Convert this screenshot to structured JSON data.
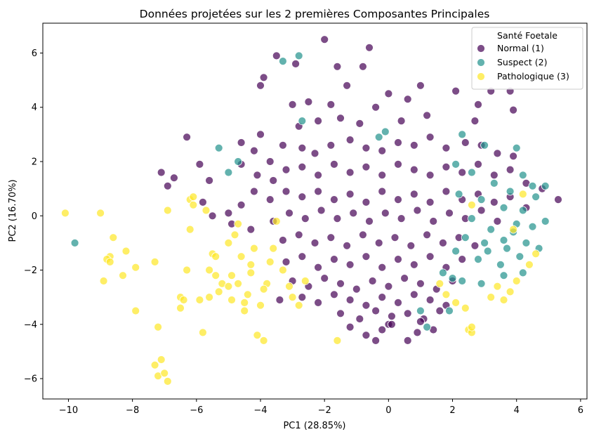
{
  "chart_data": {
    "type": "scatter",
    "title": "Données projetées sur les 2 premières Composantes Principales",
    "xlabel": "PC1 (28.85%)",
    "ylabel": "PC2 (16.70%)",
    "xlim": [
      -10.8,
      6.2
    ],
    "ylim": [
      -6.75,
      7.1
    ],
    "xticks": [
      -10,
      -8,
      -6,
      -4,
      -2,
      0,
      2,
      4,
      6
    ],
    "yticks": [
      -6,
      -4,
      -2,
      0,
      2,
      4,
      6
    ],
    "grid": false,
    "legend": {
      "title": "Santé Foetale",
      "placement": "top-right"
    },
    "series": [
      {
        "name": "Normal (1)",
        "color": "#440154",
        "points": [
          [
            -2.0,
            6.5
          ],
          [
            -3.5,
            5.9
          ],
          [
            -0.6,
            6.2
          ],
          [
            -1.6,
            5.5
          ],
          [
            -0.8,
            5.5
          ],
          [
            -2.9,
            5.6
          ],
          [
            -3.9,
            5.1
          ],
          [
            -4.0,
            4.8
          ],
          [
            -3.0,
            4.1
          ],
          [
            -1.3,
            4.8
          ],
          [
            0.0,
            4.5
          ],
          [
            1.0,
            4.8
          ],
          [
            3.2,
            4.6
          ],
          [
            3.8,
            4.6
          ],
          [
            -2.5,
            4.2
          ],
          [
            -1.8,
            4.1
          ],
          [
            -0.4,
            4.0
          ],
          [
            0.6,
            4.3
          ],
          [
            2.1,
            4.6
          ],
          [
            2.8,
            4.1
          ],
          [
            3.9,
            3.9
          ],
          [
            -6.3,
            2.9
          ],
          [
            -4.0,
            3.0
          ],
          [
            -2.8,
            3.3
          ],
          [
            -2.2,
            3.5
          ],
          [
            -1.5,
            3.6
          ],
          [
            -0.9,
            3.4
          ],
          [
            0.4,
            3.5
          ],
          [
            1.2,
            3.7
          ],
          [
            2.7,
            3.5
          ],
          [
            -7.1,
            1.6
          ],
          [
            -6.7,
            1.4
          ],
          [
            -6.9,
            1.1
          ],
          [
            -5.9,
            1.9
          ],
          [
            -5.6,
            1.3
          ],
          [
            -5.8,
            0.5
          ],
          [
            -5.5,
            0.0
          ],
          [
            -5.0,
            0.1
          ],
          [
            -4.9,
            -0.3
          ],
          [
            -4.6,
            0.4
          ],
          [
            -4.3,
            -0.5
          ],
          [
            -4.6,
            2.7
          ],
          [
            -4.2,
            2.4
          ],
          [
            -3.7,
            2.0
          ],
          [
            -3.3,
            2.6
          ],
          [
            -2.7,
            2.5
          ],
          [
            -2.3,
            2.3
          ],
          [
            -1.8,
            2.6
          ],
          [
            -1.2,
            2.8
          ],
          [
            -0.7,
            2.5
          ],
          [
            -0.2,
            2.4
          ],
          [
            0.3,
            2.7
          ],
          [
            0.8,
            2.6
          ],
          [
            1.3,
            2.9
          ],
          [
            1.8,
            2.5
          ],
          [
            2.4,
            2.7
          ],
          [
            2.9,
            2.6
          ],
          [
            3.4,
            2.3
          ],
          [
            3.9,
            2.2
          ],
          [
            -4.6,
            1.9
          ],
          [
            -4.1,
            1.5
          ],
          [
            -3.6,
            1.3
          ],
          [
            -3.2,
            1.7
          ],
          [
            -2.7,
            1.8
          ],
          [
            -2.2,
            1.5
          ],
          [
            -1.7,
            1.9
          ],
          [
            -1.2,
            1.6
          ],
          [
            -0.7,
            1.8
          ],
          [
            -0.2,
            1.5
          ],
          [
            0.3,
            1.9
          ],
          [
            0.8,
            1.7
          ],
          [
            1.3,
            1.5
          ],
          [
            1.8,
            1.8
          ],
          [
            2.3,
            1.6
          ],
          [
            2.8,
            1.9
          ],
          [
            3.3,
            1.5
          ],
          [
            3.8,
            1.7
          ],
          [
            4.3,
            1.2
          ],
          [
            4.8,
            1.0
          ],
          [
            5.3,
            0.6
          ],
          [
            -4.2,
            0.9
          ],
          [
            -3.7,
            0.6
          ],
          [
            -3.2,
            0.9
          ],
          [
            -2.7,
            0.7
          ],
          [
            -2.2,
            0.9
          ],
          [
            -1.7,
            0.6
          ],
          [
            -1.2,
            0.8
          ],
          [
            -0.7,
            0.5
          ],
          [
            -0.2,
            0.9
          ],
          [
            0.3,
            0.6
          ],
          [
            0.8,
            0.8
          ],
          [
            1.3,
            0.5
          ],
          [
            1.8,
            0.9
          ],
          [
            2.3,
            0.6
          ],
          [
            2.8,
            0.8
          ],
          [
            3.3,
            0.5
          ],
          [
            3.8,
            0.7
          ],
          [
            4.3,
            0.3
          ],
          [
            -3.6,
            -0.2
          ],
          [
            -3.1,
            0.1
          ],
          [
            -2.6,
            -0.1
          ],
          [
            -2.1,
            0.2
          ],
          [
            -1.6,
            -0.1
          ],
          [
            -1.1,
            0.1
          ],
          [
            -0.6,
            -0.2
          ],
          [
            -0.1,
            0.1
          ],
          [
            0.4,
            -0.1
          ],
          [
            0.9,
            0.2
          ],
          [
            1.4,
            -0.2
          ],
          [
            1.9,
            0.1
          ],
          [
            2.4,
            -0.1
          ],
          [
            2.9,
            0.2
          ],
          [
            3.4,
            -0.2
          ],
          [
            -3.3,
            -0.9
          ],
          [
            -2.8,
            -0.7
          ],
          [
            -2.3,
            -1.0
          ],
          [
            -1.8,
            -0.8
          ],
          [
            -1.3,
            -1.1
          ],
          [
            -0.8,
            -0.7
          ],
          [
            -0.3,
            -1.0
          ],
          [
            0.2,
            -0.8
          ],
          [
            0.7,
            -1.1
          ],
          [
            1.2,
            -0.7
          ],
          [
            1.7,
            -1.0
          ],
          [
            2.2,
            -0.8
          ],
          [
            2.7,
            -1.1
          ],
          [
            -3.2,
            -1.7
          ],
          [
            -2.7,
            -1.5
          ],
          [
            -2.2,
            -1.9
          ],
          [
            -1.7,
            -1.6
          ],
          [
            -1.2,
            -1.8
          ],
          [
            -0.7,
            -1.5
          ],
          [
            -0.2,
            -1.9
          ],
          [
            0.3,
            -1.6
          ],
          [
            0.8,
            -1.8
          ],
          [
            1.3,
            -1.5
          ],
          [
            1.8,
            -1.9
          ],
          [
            2.3,
            -1.6
          ],
          [
            -3.0,
            -2.4
          ],
          [
            -2.5,
            -2.6
          ],
          [
            -2.0,
            -2.3
          ],
          [
            -1.5,
            -2.5
          ],
          [
            -1.0,
            -2.7
          ],
          [
            -0.5,
            -2.4
          ],
          [
            0.0,
            -2.6
          ],
          [
            0.5,
            -2.3
          ],
          [
            1.0,
            -2.5
          ],
          [
            1.5,
            -2.7
          ],
          [
            2.0,
            -2.4
          ],
          [
            -2.7,
            -3.0
          ],
          [
            -2.2,
            -3.2
          ],
          [
            -1.7,
            -2.9
          ],
          [
            -1.2,
            -3.1
          ],
          [
            -0.7,
            -3.3
          ],
          [
            -0.2,
            -3.0
          ],
          [
            0.3,
            -3.2
          ],
          [
            0.8,
            -2.9
          ],
          [
            1.3,
            -3.1
          ],
          [
            1.8,
            -3.3
          ],
          [
            -1.5,
            -3.6
          ],
          [
            -0.9,
            -3.8
          ],
          [
            -0.4,
            -3.5
          ],
          [
            0.1,
            -3.7
          ],
          [
            0.6,
            -3.6
          ],
          [
            1.1,
            -3.8
          ],
          [
            1.6,
            -3.5
          ],
          [
            -3.4,
            -3.1
          ],
          [
            -0.7,
            -4.4
          ],
          [
            -0.4,
            -4.6
          ],
          [
            0.0,
            -4.0
          ],
          [
            0.1,
            -4.0
          ],
          [
            0.6,
            -4.6
          ],
          [
            1.0,
            -3.9
          ],
          [
            -1.2,
            -4.1
          ],
          [
            -0.2,
            -4.2
          ],
          [
            0.9,
            -4.3
          ],
          [
            1.4,
            -4.2
          ]
        ]
      },
      {
        "name": "Suspect (2)",
        "color": "#21918c",
        "points": [
          [
            -9.8,
            -1.0
          ],
          [
            -2.8,
            5.9
          ],
          [
            -3.3,
            5.7
          ],
          [
            -5.3,
            2.5
          ],
          [
            -4.7,
            2.0
          ],
          [
            -5.0,
            1.6
          ],
          [
            -2.7,
            3.5
          ],
          [
            2.3,
            3.0
          ],
          [
            3.0,
            2.6
          ],
          [
            4.0,
            2.5
          ],
          [
            4.2,
            1.5
          ],
          [
            4.5,
            1.1
          ],
          [
            4.9,
            1.1
          ],
          [
            2.1,
            1.9
          ],
          [
            2.6,
            1.6
          ],
          [
            3.3,
            1.2
          ],
          [
            3.8,
            0.9
          ],
          [
            4.6,
            0.7
          ],
          [
            2.2,
            0.8
          ],
          [
            2.9,
            0.6
          ],
          [
            3.6,
            0.3
          ],
          [
            4.2,
            0.2
          ],
          [
            4.9,
            -0.2
          ],
          [
            2.6,
            -0.1
          ],
          [
            3.2,
            -0.5
          ],
          [
            3.9,
            -0.6
          ],
          [
            4.5,
            -0.4
          ],
          [
            2.4,
            -0.8
          ],
          [
            3.0,
            -1.0
          ],
          [
            3.7,
            -1.2
          ],
          [
            4.3,
            -1.0
          ],
          [
            2.1,
            -1.3
          ],
          [
            2.8,
            -1.6
          ],
          [
            3.5,
            -1.8
          ],
          [
            4.1,
            -1.5
          ],
          [
            4.7,
            -1.2
          ],
          [
            1.7,
            -2.1
          ],
          [
            2.3,
            -2.4
          ],
          [
            2.9,
            -2.5
          ],
          [
            3.6,
            -2.2
          ],
          [
            4.2,
            -2.1
          ],
          [
            1.0,
            -3.5
          ],
          [
            1.2,
            -4.1
          ],
          [
            1.9,
            -3.5
          ],
          [
            2.0,
            -2.3
          ],
          [
            3.1,
            -1.3
          ],
          [
            3.6,
            -0.9
          ],
          [
            4.0,
            -0.3
          ],
          [
            -0.3,
            2.9
          ],
          [
            -0.1,
            3.1
          ]
        ]
      },
      {
        "name": "Pathologique (3)",
        "color": "#fde725",
        "points": [
          [
            -10.1,
            0.1
          ],
          [
            -9.0,
            0.1
          ],
          [
            -8.6,
            -0.8
          ],
          [
            -8.7,
            -1.5
          ],
          [
            -8.8,
            -1.6
          ],
          [
            -8.7,
            -1.7
          ],
          [
            -8.9,
            -2.4
          ],
          [
            -8.2,
            -1.3
          ],
          [
            -8.3,
            -2.2
          ],
          [
            -7.9,
            -1.9
          ],
          [
            -7.9,
            -3.5
          ],
          [
            -7.3,
            -1.7
          ],
          [
            -7.2,
            -4.1
          ],
          [
            -7.3,
            -5.5
          ],
          [
            -7.1,
            -5.3
          ],
          [
            -7.2,
            -5.9
          ],
          [
            -7.0,
            -5.8
          ],
          [
            -6.9,
            -6.1
          ],
          [
            -6.5,
            -3.0
          ],
          [
            -6.5,
            -3.4
          ],
          [
            -6.4,
            -3.1
          ],
          [
            -6.3,
            -2.0
          ],
          [
            -6.2,
            -0.5
          ],
          [
            -6.2,
            0.6
          ],
          [
            -6.1,
            0.7
          ],
          [
            -6.1,
            0.4
          ],
          [
            -5.9,
            -3.1
          ],
          [
            -5.8,
            -4.3
          ],
          [
            -5.6,
            -3.0
          ],
          [
            -5.6,
            -2.0
          ],
          [
            -5.5,
            -1.4
          ],
          [
            -5.4,
            -1.5
          ],
          [
            -5.4,
            -2.2
          ],
          [
            -5.3,
            -2.8
          ],
          [
            -5.2,
            -2.5
          ],
          [
            -5.0,
            -1.0
          ],
          [
            -4.9,
            -2.2
          ],
          [
            -4.9,
            -3.1
          ],
          [
            -4.7,
            -2.5
          ],
          [
            -4.6,
            -1.5
          ],
          [
            -4.5,
            -3.2
          ],
          [
            -4.5,
            -3.5
          ],
          [
            -4.4,
            -2.9
          ],
          [
            -4.3,
            -2.1
          ],
          [
            -4.2,
            -1.2
          ],
          [
            -4.1,
            -4.4
          ],
          [
            -4.0,
            -3.3
          ],
          [
            -3.9,
            -4.6
          ],
          [
            -3.8,
            -2.5
          ],
          [
            -3.7,
            -1.7
          ],
          [
            -3.6,
            -1.2
          ],
          [
            -5.7,
            0.2
          ],
          [
            -4.7,
            -0.3
          ],
          [
            -3.5,
            -0.2
          ],
          [
            -3.3,
            -2.0
          ],
          [
            -3.1,
            -2.6
          ],
          [
            -3.0,
            -3.0
          ],
          [
            -2.8,
            -3.3
          ],
          [
            -2.6,
            -2.4
          ],
          [
            -1.6,
            -4.6
          ],
          [
            1.6,
            -2.5
          ],
          [
            1.8,
            -2.9
          ],
          [
            2.1,
            -3.2
          ],
          [
            2.4,
            -3.4
          ],
          [
            2.5,
            -4.2
          ],
          [
            2.6,
            -4.3
          ],
          [
            2.6,
            -4.1
          ],
          [
            3.2,
            -3.0
          ],
          [
            3.4,
            -2.6
          ],
          [
            3.6,
            -3.1
          ],
          [
            3.8,
            -2.8
          ],
          [
            4.0,
            -2.4
          ],
          [
            4.4,
            -1.8
          ],
          [
            4.6,
            -1.4
          ],
          [
            3.9,
            -0.5
          ],
          [
            4.2,
            0.8
          ],
          [
            2.6,
            0.4
          ],
          [
            -4.8,
            -0.7
          ],
          [
            -4.3,
            -1.8
          ],
          [
            -6.9,
            0.2
          ],
          [
            -5.0,
            -2.6
          ],
          [
            -3.9,
            -2.7
          ]
        ]
      }
    ]
  }
}
